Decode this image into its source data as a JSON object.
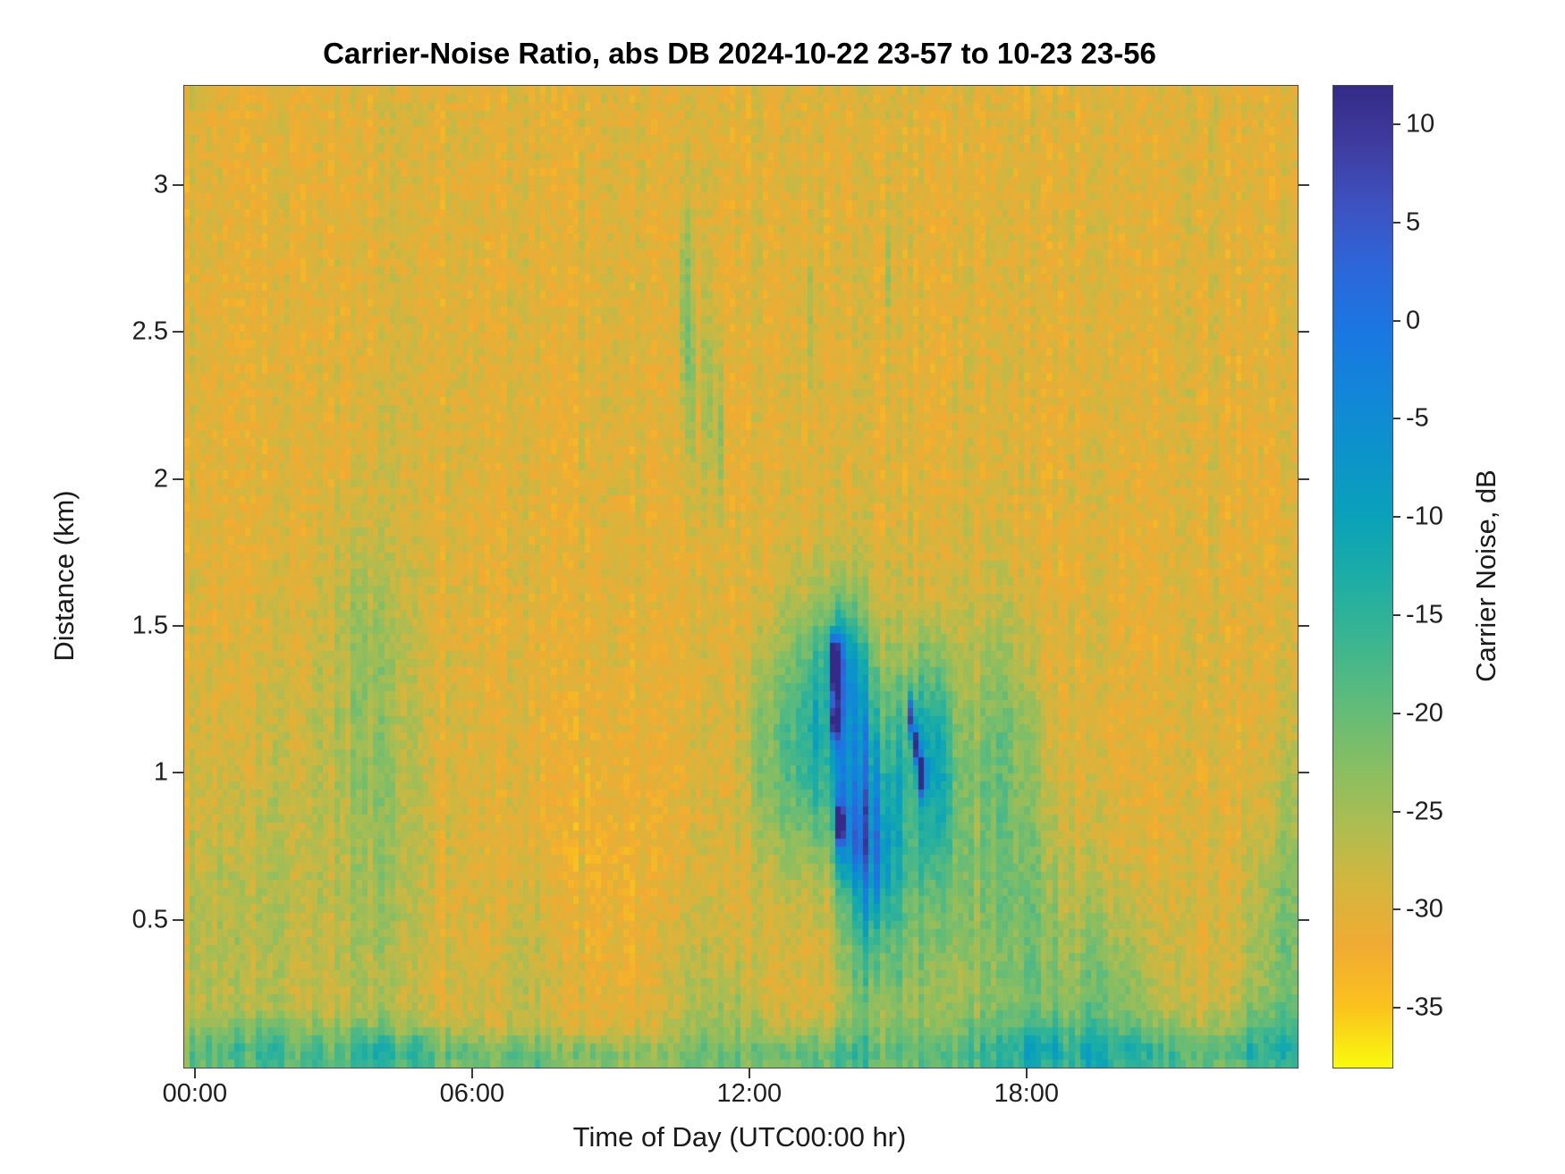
{
  "chart_data": {
    "type": "heatmap",
    "title": "Carrier-Noise Ratio, abs DB 2024-10-22 23-57 to 10-23 23-56",
    "xlabel": "Time of Day (UTC00:00 hr)",
    "ylabel": "Distance (km)",
    "x_ticks": [
      {
        "hour": 0,
        "label": "00:00"
      },
      {
        "hour": 6,
        "label": "06:00"
      },
      {
        "hour": 12,
        "label": "12:00"
      },
      {
        "hour": 18,
        "label": "18:00"
      }
    ],
    "x_range_hours": [
      -0.25,
      23.85
    ],
    "y_ticks": [
      {
        "km": 0.5,
        "label": "0.5"
      },
      {
        "km": 1,
        "label": "1"
      },
      {
        "km": 1.5,
        "label": "1.5"
      },
      {
        "km": 2,
        "label": "2"
      },
      {
        "km": 2.5,
        "label": "2.5"
      },
      {
        "km": 3,
        "label": "3"
      }
    ],
    "y_range_km": [
      0,
      3.34
    ],
    "colorbar": {
      "label": "Carrier Noise, dB",
      "ticks": [
        10,
        5,
        0,
        -5,
        -10,
        -15,
        -20,
        -25,
        -30,
        -35
      ],
      "vmin": -38,
      "vmax": 12
    },
    "colormap_stops_high_to_low": [
      "#352a87",
      "#3f3da1",
      "#3d53c2",
      "#2c67da",
      "#1a77e2",
      "#1286d8",
      "#0c94ca",
      "#0aa1ba",
      "#1cada6",
      "#3ab591",
      "#5dbb7b",
      "#84be64",
      "#abbd51",
      "#d4b63e",
      "#f0ab33",
      "#fbc21d",
      "#f9fb0e"
    ],
    "field": {
      "background_db": -30.0,
      "cell_noise_db": 2.2,
      "column_noise_db": 1.5,
      "grid": {
        "nx": 200,
        "ny": 120
      },
      "features": [
        {
          "t": 12,
          "y": 0.03,
          "st": 14,
          "sy": 0.06,
          "a": 5
        },
        {
          "t": 1.5,
          "y": 0.06,
          "st": 1.8,
          "sy": 0.08,
          "a": 7
        },
        {
          "t": 4.6,
          "y": 0.05,
          "st": 1.0,
          "sy": 0.07,
          "a": 6
        },
        {
          "t": 8.0,
          "y": 0.04,
          "st": 1.2,
          "sy": 0.05,
          "a": 4
        },
        {
          "t": 13.5,
          "y": 0.05,
          "st": 0.8,
          "sy": 0.07,
          "a": 5
        },
        {
          "t": 17.8,
          "y": 0.07,
          "st": 1.2,
          "sy": 0.09,
          "a": 7
        },
        {
          "t": 20.5,
          "y": 0.05,
          "st": 1.5,
          "sy": 0.07,
          "a": 6
        },
        {
          "t": 23.2,
          "y": 0.08,
          "st": 0.9,
          "sy": 0.1,
          "a": 7
        },
        {
          "t": 2.3,
          "y": 0.7,
          "st": 1.6,
          "sy": 0.55,
          "a": 3
        },
        {
          "t": 4.0,
          "y": 0.95,
          "st": 0.7,
          "sy": 0.6,
          "a": 3.5
        },
        {
          "t": 3.4,
          "y": 1.45,
          "st": 0.5,
          "sy": 0.25,
          "a": 2.5
        },
        {
          "t": 0.6,
          "y": 0.4,
          "st": 0.8,
          "sy": 0.3,
          "a": 3
        },
        {
          "t": 7.5,
          "y": 0.3,
          "st": 0.8,
          "sy": 0.25,
          "a": 3
        },
        {
          "t": 9.0,
          "y": 0.6,
          "st": 1.0,
          "sy": 0.4,
          "a": -2.5
        },
        {
          "t": 10.5,
          "y": 0.3,
          "st": 0.8,
          "sy": 0.3,
          "a": 2.5
        },
        {
          "t": 11.5,
          "y": 0.15,
          "st": 0.6,
          "sy": 0.15,
          "a": 4
        },
        {
          "t": 12.6,
          "y": 1.05,
          "st": 0.55,
          "sy": 0.3,
          "a": 6
        },
        {
          "t": 13.3,
          "y": 1.15,
          "st": 0.5,
          "sy": 0.3,
          "a": 8
        },
        {
          "t": 14.1,
          "y": 1.15,
          "st": 0.5,
          "sy": 0.3,
          "a": 16
        },
        {
          "t": 14.0,
          "y": 1.38,
          "st": 0.25,
          "sy": 0.12,
          "a": 10
        },
        {
          "t": 14.6,
          "y": 0.95,
          "st": 0.4,
          "sy": 0.25,
          "a": 10
        },
        {
          "t": 14.8,
          "y": 0.7,
          "st": 0.3,
          "sy": 0.18,
          "a": 12
        },
        {
          "t": 14.2,
          "y": 0.78,
          "st": 0.25,
          "sy": 0.12,
          "a": 10
        },
        {
          "t": 14.4,
          "y": 0.4,
          "st": 0.35,
          "sy": 0.3,
          "a": 8
        },
        {
          "t": 15.2,
          "y": 0.6,
          "st": 0.4,
          "sy": 0.5,
          "a": 7
        },
        {
          "t": 15.7,
          "y": 1.1,
          "st": 0.4,
          "sy": 0.25,
          "a": 10
        },
        {
          "t": 16.1,
          "y": 1.0,
          "st": 0.3,
          "sy": 0.3,
          "a": 9
        },
        {
          "t": 16.0,
          "y": 0.5,
          "st": 0.5,
          "sy": 0.4,
          "a": 5
        },
        {
          "t": 17.2,
          "y": 0.8,
          "st": 0.6,
          "sy": 0.55,
          "a": 6
        },
        {
          "t": 17.9,
          "y": 0.5,
          "st": 0.6,
          "sy": 0.45,
          "a": 6
        },
        {
          "t": 17.5,
          "y": 1.15,
          "st": 0.4,
          "sy": 0.25,
          "a": 4
        },
        {
          "t": 19.3,
          "y": 0.3,
          "st": 0.8,
          "sy": 0.28,
          "a": 5
        },
        {
          "t": 20.3,
          "y": 0.2,
          "st": 0.8,
          "sy": 0.2,
          "a": 4
        },
        {
          "t": 23.4,
          "y": 0.35,
          "st": 0.6,
          "sy": 0.3,
          "a": 6
        },
        {
          "t": 23.7,
          "y": 0.8,
          "st": 0.4,
          "sy": 0.4,
          "a": 3
        },
        {
          "t": 10.6,
          "y": 2.6,
          "st": 0.07,
          "sy": 0.28,
          "a": 8
        },
        {
          "t": 10.75,
          "y": 2.35,
          "st": 0.06,
          "sy": 0.25,
          "a": 6
        },
        {
          "t": 11.1,
          "y": 2.3,
          "st": 0.07,
          "sy": 0.22,
          "a": 7
        },
        {
          "t": 11.35,
          "y": 2.15,
          "st": 0.06,
          "sy": 0.18,
          "a": 6
        },
        {
          "t": 13.3,
          "y": 2.55,
          "st": 0.06,
          "sy": 0.2,
          "a": 5
        },
        {
          "t": 15.0,
          "y": 2.72,
          "st": 0.05,
          "sy": 0.12,
          "a": 5
        },
        {
          "t": 13.82,
          "y": 1.4,
          "st": 0.06,
          "sy": 0.045,
          "a": 42
        },
        {
          "t": 13.85,
          "y": 1.31,
          "st": 0.05,
          "sy": 0.04,
          "a": 38
        },
        {
          "t": 13.84,
          "y": 1.18,
          "st": 0.05,
          "sy": 0.04,
          "a": 40
        },
        {
          "t": 13.95,
          "y": 0.83,
          "st": 0.05,
          "sy": 0.04,
          "a": 42
        },
        {
          "t": 15.5,
          "y": 1.2,
          "st": 0.045,
          "sy": 0.05,
          "a": 40
        },
        {
          "t": 15.6,
          "y": 1.1,
          "st": 0.04,
          "sy": 0.04,
          "a": 34
        },
        {
          "t": 15.75,
          "y": 1.0,
          "st": 0.045,
          "sy": 0.045,
          "a": 38
        }
      ]
    }
  }
}
